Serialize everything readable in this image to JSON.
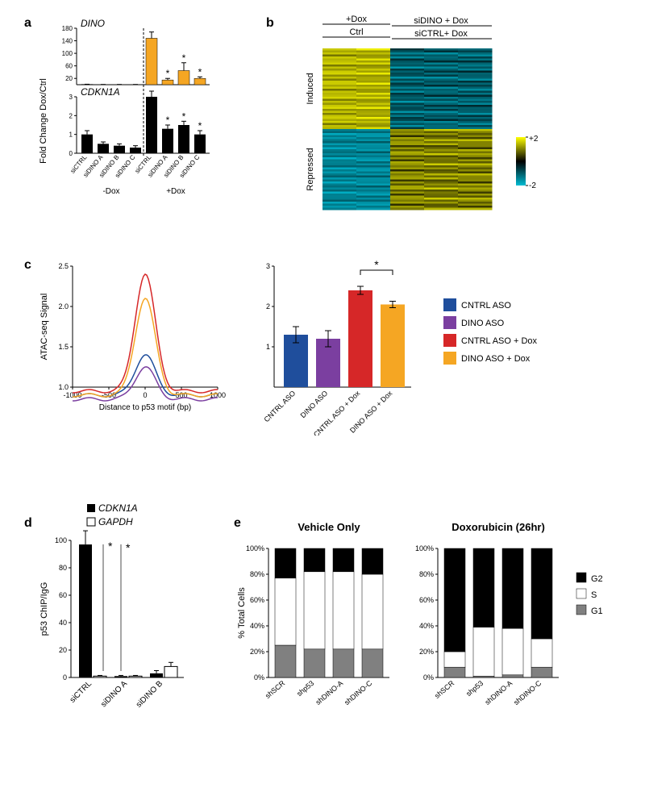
{
  "panel_a": {
    "label": "a",
    "y_label": "Fold Change Dox/Ctrl",
    "top_title": "DINO",
    "bottom_title": "CDKN1A",
    "categories": [
      "siCTRL",
      "siDINO A",
      "siDINO B",
      "siDINO C",
      "siCTRL",
      "siDINO A",
      "siDINO B",
      "siDINO C"
    ],
    "group_labels": [
      "-Dox",
      "+Dox"
    ],
    "top_values": [
      1,
      0.5,
      0.5,
      0.5,
      148,
      15,
      45,
      20
    ],
    "top_err": [
      0.5,
      0.3,
      0.3,
      0.3,
      20,
      5,
      25,
      5
    ],
    "top_ylim": [
      0,
      180
    ],
    "top_yticks": [
      20,
      60,
      100,
      140,
      180
    ],
    "top_sig": [
      false,
      false,
      false,
      false,
      false,
      true,
      true,
      true
    ],
    "top_color": "#f5a623",
    "bottom_values": [
      1,
      0.5,
      0.4,
      0.3,
      3.0,
      1.3,
      1.5,
      1.0
    ],
    "bottom_err": [
      0.2,
      0.1,
      0.1,
      0.1,
      0.3,
      0.2,
      0.2,
      0.2
    ],
    "bottom_ylim": [
      0,
      3
    ],
    "bottom_yticks": [
      0,
      1,
      2,
      3
    ],
    "bottom_sig": [
      false,
      false,
      false,
      false,
      false,
      true,
      true,
      true
    ],
    "bottom_color": "#000000"
  },
  "panel_b": {
    "label": "b",
    "top_labels_left": "+Dox",
    "top_labels_left2": "Ctrl",
    "top_labels_right1": "siDINO + Dox",
    "top_labels_right2": "siCTRL+ Dox",
    "row_label_top": "Induced",
    "row_label_bottom": "Repressed",
    "scale_top": "+2",
    "scale_bottom": "-2",
    "color_high": "#ffff00",
    "color_mid": "#000000",
    "color_low": "#00bcd4"
  },
  "panel_c": {
    "label": "c",
    "y_label_left": "ATAC-seq Signal",
    "x_label_left": "Distance to p53 motif (bp)",
    "x_ticks": [
      "-1000",
      "-500",
      "0",
      "500",
      "1000"
    ],
    "y_ticks": [
      "1.0",
      "1.5",
      "2.0",
      "2.5"
    ],
    "line_colors": [
      "#1f4e9c",
      "#7b3fa0",
      "#d62728",
      "#f5a623"
    ],
    "legend": [
      "CNTRL ASO",
      "DINO ASO",
      "CNTRL ASO + Dox",
      "DINO ASO + Dox"
    ],
    "bar_values": [
      1.3,
      1.2,
      2.4,
      2.05
    ],
    "bar_err": [
      0.2,
      0.2,
      0.1,
      0.08
    ],
    "bar_cats": [
      "CNTRL ASO",
      "DINO ASO",
      "CNTRL ASO + Dox",
      "DINO ASO + Dox"
    ],
    "bar_ylim": [
      0,
      3
    ],
    "bar_yticks": [
      1,
      2,
      3
    ],
    "sig_pair": [
      2,
      3
    ]
  },
  "panel_d": {
    "label": "d",
    "y_label": "p53 ChIP/IgG",
    "yticks": [
      0,
      20,
      40,
      60,
      80,
      100
    ],
    "legend": [
      "CDKN1A",
      "GAPDH"
    ],
    "legend_colors": [
      "#000000",
      "#ffffff"
    ],
    "cats": [
      "siCTRL",
      "siDINO  A",
      "siDINO B"
    ],
    "cdkn1a": [
      97,
      1,
      3
    ],
    "cdkn1a_err": [
      10,
      0.5,
      2
    ],
    "gapdh": [
      1,
      1,
      8
    ],
    "gapdh_err": [
      0.5,
      0.5,
      3
    ],
    "sig_pairs": [
      [
        0,
        1
      ],
      [
        0,
        2
      ]
    ]
  },
  "panel_e": {
    "label": "e",
    "title_left": "Vehicle Only",
    "title_right": "Doxorubicin (26hr)",
    "y_label": "% Total Cells",
    "yticks": [
      0,
      20,
      40,
      60,
      80,
      100
    ],
    "cats": [
      "shSCR",
      "shp53",
      "shDINO-A",
      "shDINO-C"
    ],
    "legend": [
      "G2",
      "S",
      "G1"
    ],
    "legend_colors": [
      "#000000",
      "#ffffff",
      "#808080"
    ],
    "left_data": [
      {
        "G1": 25,
        "S": 52,
        "G2": 23
      },
      {
        "G1": 22,
        "S": 60,
        "G2": 18
      },
      {
        "G1": 22,
        "S": 60,
        "G2": 18
      },
      {
        "G1": 22,
        "S": 58,
        "G2": 20
      }
    ],
    "right_data": [
      {
        "G1": 8,
        "S": 12,
        "G2": 80
      },
      {
        "G1": 1,
        "S": 38,
        "G2": 61
      },
      {
        "G1": 2,
        "S": 36,
        "G2": 62
      },
      {
        "G1": 8,
        "S": 22,
        "G2": 70
      }
    ]
  }
}
